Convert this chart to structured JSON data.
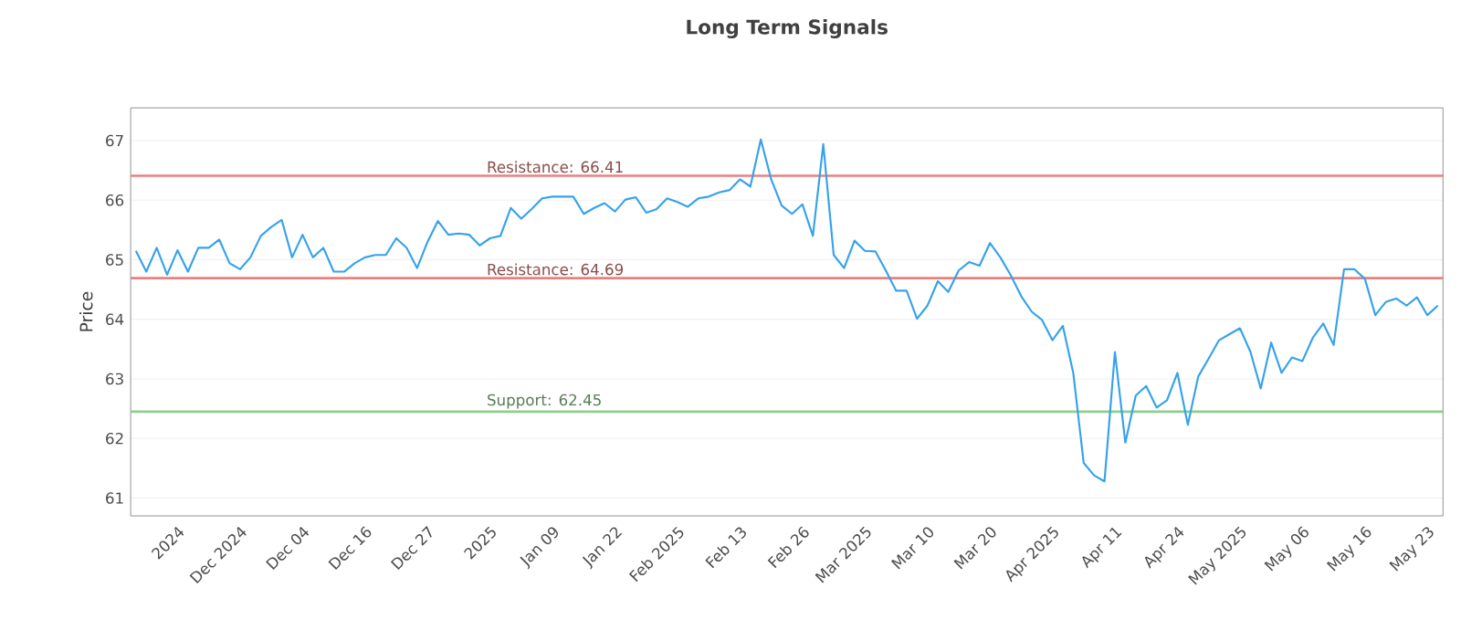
{
  "chart_data": {
    "type": "line",
    "title": "Long Term Signals",
    "ylabel": "Price",
    "categories": [
      null,
      null,
      null,
      null,
      "2024",
      null,
      null,
      null,
      null,
      null,
      "Dec 2024",
      null,
      null,
      null,
      null,
      null,
      "Dec 04",
      null,
      null,
      null,
      null,
      null,
      "Dec 16",
      null,
      null,
      null,
      null,
      null,
      "Dec 27",
      null,
      null,
      null,
      null,
      null,
      "2025",
      null,
      null,
      null,
      null,
      null,
      "Jan 09",
      null,
      null,
      null,
      null,
      null,
      "Jan 22",
      null,
      null,
      null,
      null,
      null,
      "Feb 2025",
      null,
      null,
      null,
      null,
      null,
      "Feb 13",
      null,
      null,
      null,
      null,
      null,
      "Feb 26",
      null,
      null,
      null,
      null,
      null,
      "Mar 2025",
      null,
      null,
      null,
      null,
      null,
      "Mar 10",
      null,
      null,
      null,
      null,
      null,
      "Mar 20",
      null,
      null,
      null,
      null,
      null,
      "Apr 2025",
      null,
      null,
      null,
      null,
      null,
      "Apr 11",
      null,
      null,
      null,
      null,
      null,
      "Apr 24",
      null,
      null,
      null,
      null,
      null,
      "May 2025",
      null,
      null,
      null,
      null,
      null,
      "May 06",
      null,
      null,
      null,
      null,
      null,
      "May 16",
      null,
      null,
      null,
      null,
      null,
      "May 23",
      null
    ],
    "series": [
      {
        "color": "#36a2eb",
        "values": [
          65.15,
          64.8,
          65.2,
          64.75,
          65.16,
          64.8,
          65.2,
          65.2,
          65.34,
          64.94,
          64.84,
          65.04,
          65.4,
          65.55,
          65.67,
          65.04,
          65.42,
          65.04,
          65.2,
          64.8,
          64.8,
          64.94,
          65.04,
          65.08,
          65.08,
          65.36,
          65.2,
          64.86,
          65.3,
          65.65,
          65.42,
          65.44,
          65.42,
          65.24,
          65.36,
          65.4,
          65.87,
          65.69,
          65.85,
          66.03,
          66.06,
          66.06,
          66.06,
          65.77,
          65.87,
          65.95,
          65.81,
          66.01,
          66.05,
          65.79,
          65.85,
          66.03,
          65.97,
          65.89,
          66.03,
          66.06,
          66.13,
          66.17,
          66.35,
          66.23,
          67.02,
          66.35,
          65.91,
          65.77,
          65.93,
          65.4,
          66.94,
          65.08,
          64.86,
          65.32,
          65.15,
          65.14,
          64.82,
          64.48,
          64.48,
          64.01,
          64.23,
          64.64,
          64.46,
          64.82,
          64.96,
          64.9,
          65.28,
          65.04,
          64.74,
          64.39,
          64.13,
          63.99,
          63.65,
          63.89,
          63.1,
          61.59,
          61.38,
          61.28,
          63.45,
          61.93,
          62.72,
          62.88,
          62.52,
          62.64,
          63.1,
          62.23,
          63.04,
          63.34,
          63.65,
          63.75,
          63.85,
          63.46,
          62.84,
          63.61,
          63.1,
          63.36,
          63.3,
          63.69,
          63.93,
          63.57,
          64.84,
          64.84,
          64.68,
          64.07,
          64.29,
          64.35,
          64.23,
          64.37,
          64.07,
          64.23
        ]
      }
    ],
    "ylim": [
      60.7,
      67.55
    ],
    "yticks": [
      61,
      62,
      63,
      64,
      65,
      66,
      67
    ],
    "grid": "y",
    "marker": "none",
    "line_style": "solid",
    "ref_lines": [
      {
        "axis": "y",
        "value": 66.41,
        "label": "Resistance: 66.41",
        "color": "#e88080"
      },
      {
        "axis": "y",
        "value": 64.69,
        "label": "Resistance: 64.69",
        "color": "#e88080"
      },
      {
        "axis": "y",
        "value": 62.45,
        "label": "Support: 62.45",
        "color": "#8fce8f"
      }
    ]
  }
}
